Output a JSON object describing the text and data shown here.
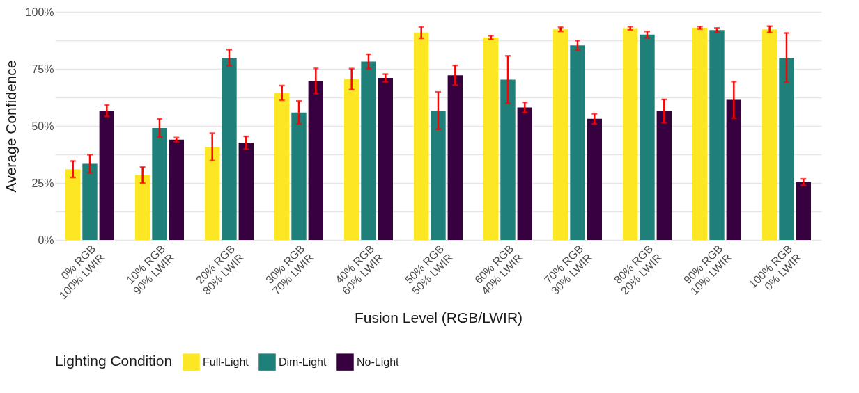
{
  "chart_data": {
    "type": "bar",
    "xlabel": "Fusion Level (RGB/LWIR)",
    "ylabel": "Average Confidence",
    "legend_title": "Lighting Condition",
    "categories": [
      "0% RGB\n100% LWIR",
      "10% RGB\n90% LWIR",
      "20% RGB\n80% LWIR",
      "30% RGB\n70% LWIR",
      "40% RGB\n60% LWIR",
      "50% RGB\n50% LWIR",
      "60% RGB\n40% LWIR",
      "70% RGB\n30% LWIR",
      "80% RGB\n20% LWIR",
      "90% RGB\n10% LWIR",
      "100% RGB\n0% LWIR"
    ],
    "series": [
      {
        "name": "Full-Light",
        "color": "#fde725",
        "values": [
          31.0,
          28.5,
          40.8,
          64.5,
          70.5,
          90.9,
          88.7,
          92.3,
          92.8,
          93.0,
          92.3
        ],
        "errors": [
          3.6,
          3.5,
          6.0,
          3.2,
          4.6,
          2.5,
          0.8,
          0.9,
          0.7,
          0.5,
          1.4
        ]
      },
      {
        "name": "Dim-Light",
        "color": "#1f7f79",
        "values": [
          33.4,
          49.1,
          79.9,
          55.9,
          78.2,
          56.7,
          70.3,
          85.3,
          90.0,
          92.0,
          79.9
        ],
        "errors": [
          4.0,
          4.0,
          3.5,
          5.0,
          3.2,
          8.2,
          10.4,
          2.1,
          1.4,
          0.9,
          10.8
        ]
      },
      {
        "name": "No-Light",
        "color": "#37003f",
        "values": [
          56.7,
          44.0,
          42.6,
          69.7,
          71.0,
          72.2,
          58.1,
          53.1,
          56.5,
          61.4,
          25.4
        ],
        "errors": [
          2.5,
          0.9,
          2.8,
          5.5,
          1.7,
          4.3,
          2.2,
          2.2,
          5.1,
          8.0,
          1.4
        ]
      }
    ],
    "ylim": [
      0,
      100
    ],
    "yticks": [
      {
        "value": 0,
        "label": "0%"
      },
      {
        "value": 12.5,
        "label": null
      },
      {
        "value": 25,
        "label": "25%"
      },
      {
        "value": 37.5,
        "label": null
      },
      {
        "value": 50,
        "label": "50%"
      },
      {
        "value": 62.5,
        "label": null
      },
      {
        "value": 75,
        "label": "75%"
      },
      {
        "value": 87.5,
        "label": null
      },
      {
        "value": 100,
        "label": "100%"
      }
    ],
    "grid": "y",
    "legend": "bottom"
  }
}
